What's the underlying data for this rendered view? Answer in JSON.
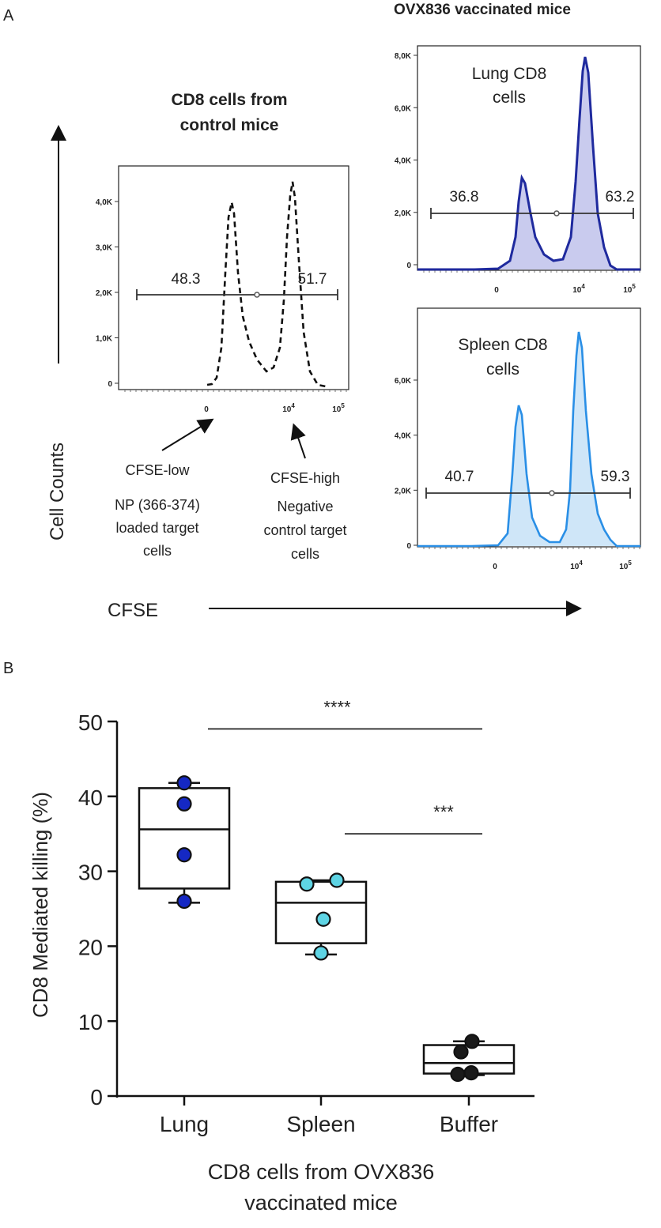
{
  "panel_a": {
    "label": "A",
    "header_right": "OVX836 vaccinated mice",
    "control_title_line1": "CD8  cells from",
    "control_title_line2": "control mice",
    "y_axis_label": "Cell Counts",
    "x_axis_label": "CFSE",
    "low_annotation": [
      "CFSE-low",
      "NP (366-374)",
      "loaded target",
      "cells"
    ],
    "high_annotation": [
      "CFSE-high",
      "Negative",
      "control target",
      "cells"
    ],
    "histograms": [
      {
        "key": "control",
        "title_lines": [],
        "y_ticks": [
          "0",
          "1,0K",
          "2,0K",
          "3,0K",
          "4,0K"
        ],
        "x_ticks": [
          "0",
          "10^4",
          "10^5"
        ],
        "gate_left": "48.3",
        "gate_right": "51.7",
        "color": "#111111",
        "style": "dashed"
      },
      {
        "key": "lung",
        "title_lines": [
          "Lung CD8",
          "cells"
        ],
        "y_ticks": [
          "0",
          "2,0K",
          "4,0K",
          "6,0K",
          "8,0K"
        ],
        "x_ticks": [
          "0",
          "10^4",
          "10^5"
        ],
        "gate_left": "36.8",
        "gate_right": "63.2",
        "color": "#1f2a9e",
        "fill": "#c9cbee",
        "style": "solid"
      },
      {
        "key": "spleen",
        "title_lines": [
          "Spleen CD8",
          "cells"
        ],
        "y_ticks": [
          "0",
          "2,0K",
          "4,0K",
          "6,0K"
        ],
        "x_ticks": [
          "0",
          "10^4",
          "10^5"
        ],
        "gate_left": "40.7",
        "gate_right": "59.3",
        "color": "#2a8fe6",
        "fill": "#cfe6f8",
        "style": "solid"
      }
    ]
  },
  "chart_data": {
    "type": "box",
    "panel_label": "B",
    "ylabel": "CD8 Mediated killing (%)",
    "xlabel_line1": "CD8 cells from OVX836",
    "xlabel_line2": "vaccinated mice",
    "ylim": [
      0,
      50
    ],
    "yticks": [
      "0",
      "10",
      "20",
      "30",
      "40",
      "50"
    ],
    "categories": [
      "Lung",
      "Spleen",
      "Buffer"
    ],
    "series": [
      {
        "name": "Lung",
        "color": "#1528c4",
        "points": [
          41.8,
          39.0,
          32.2,
          26.0
        ],
        "box": {
          "min": 25.8,
          "q1": 27.7,
          "median": 35.6,
          "q3": 41.1,
          "max": 41.8
        }
      },
      {
        "name": "Spleen",
        "color": "#5ed4e4",
        "points": [
          28.3,
          28.8,
          23.6,
          19.1
        ],
        "box": {
          "min": 18.9,
          "q1": 20.4,
          "median": 25.8,
          "q3": 28.6,
          "max": 28.8
        }
      },
      {
        "name": "Buffer",
        "color": "#1a1a1a",
        "points": [
          7.3,
          5.9,
          3.1,
          2.9
        ],
        "box": {
          "min": 2.8,
          "q1": 3.0,
          "median": 4.4,
          "q3": 6.8,
          "max": 7.3
        }
      }
    ],
    "significance": [
      {
        "from": "Lung",
        "to": "Buffer",
        "label": "****",
        "y": 49
      },
      {
        "from": "Spleen",
        "to": "Buffer",
        "label": "***",
        "y": 35
      }
    ]
  }
}
